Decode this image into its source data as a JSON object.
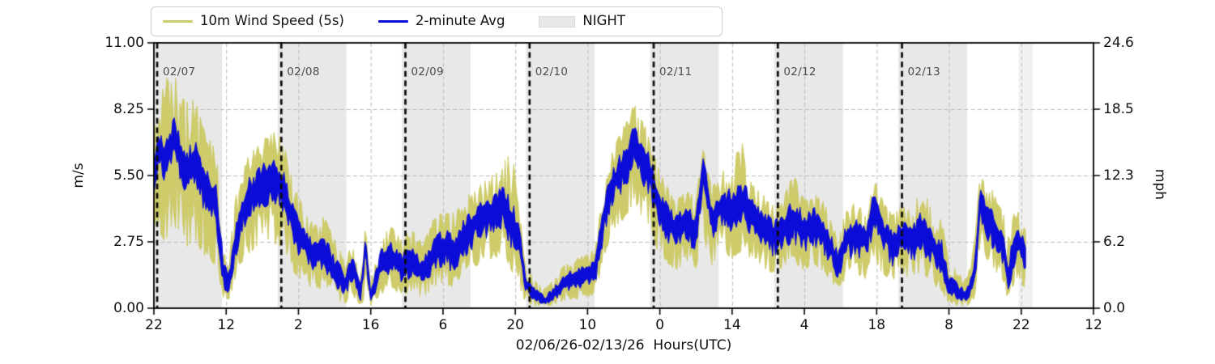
{
  "legend": {
    "items": [
      {
        "label": "10m Wind Speed (5s)",
        "swatch": "line",
        "color": "#cecb6a"
      },
      {
        "label": "2-minute Avg",
        "swatch": "line",
        "color": "#0c0cd8"
      },
      {
        "label": "NIGHT",
        "swatch": "patch",
        "color": "#e8e8e8"
      }
    ]
  },
  "axes": {
    "left": {
      "label": "m/s",
      "ticks": [
        "0.00",
        "2.75",
        "5.50",
        "8.25",
        "11.00"
      ],
      "tick_values": [
        0,
        2.75,
        5.5,
        8.25,
        11.0
      ]
    },
    "right": {
      "label": "mph",
      "ticks": [
        "0.0",
        "6.2",
        "12.3",
        "18.5",
        "24.6"
      ],
      "tick_values": [
        0,
        2.75,
        5.5,
        8.25,
        11.0
      ]
    },
    "x": {
      "label": "02/06/26-02/13/26  Hours(UTC)",
      "ticks": [
        "22",
        "12",
        "2",
        "16",
        "6",
        "20",
        "10",
        "0",
        "14",
        "4",
        "18",
        "8",
        "22",
        "12"
      ],
      "tick_hours": [
        0,
        14,
        28,
        42,
        56,
        70,
        84,
        98,
        112,
        126,
        140,
        154,
        168,
        182
      ]
    }
  },
  "chart_data": {
    "type": "line",
    "xlabel": "02/06/26-02/13/26  Hours(UTC)",
    "ylabel_left": "m/s",
    "ylabel_right": "mph",
    "ylim": [
      0,
      11
    ],
    "y2lim": [
      0,
      24.6
    ],
    "x_hours_lim": [
      0,
      182
    ],
    "grid": true,
    "legend_position": "top",
    "colors": {
      "wind_5s": "#cecb6a",
      "avg_2min": "#0c0cd8",
      "night_band": "#e8e8e8",
      "partial_band": "#f1f1f1",
      "grid_line": "#b9b9b9",
      "day_line": "#0a0a0a",
      "day_label": "#4d4d4d"
    },
    "day_markers": [
      {
        "label": "02/07",
        "t": 0.63
      },
      {
        "label": "02/08",
        "t": 24.68
      },
      {
        "label": "02/09",
        "t": 48.72
      },
      {
        "label": "02/10",
        "t": 72.77
      },
      {
        "label": "02/11",
        "t": 96.81
      },
      {
        "label": "02/12",
        "t": 120.86
      },
      {
        "label": "02/13",
        "t": 144.9
      }
    ],
    "night_bands": [
      [
        0.0,
        13.2
      ],
      [
        23.98,
        37.28
      ],
      [
        48.02,
        61.32
      ],
      [
        72.07,
        85.37
      ],
      [
        96.11,
        109.41
      ],
      [
        120.16,
        133.46
      ],
      [
        144.2,
        157.5
      ]
    ],
    "partial_band": [
      167.5,
      170.2
    ],
    "data_end_hour": 169,
    "noise_seed": 42,
    "series_names": [
      "10m Wind Speed (5s)",
      "2-minute Avg"
    ],
    "points_format": [
      "hours_from_start",
      "avg_2min_ms",
      "wind5s_hi_ms",
      "wind5s_lo_ms"
    ],
    "points": [
      [
        0,
        5.5,
        7.4,
        2.6
      ],
      [
        0.8,
        6.8,
        8.8,
        3.0
      ],
      [
        2,
        6.2,
        10.0,
        2.5
      ],
      [
        4.2,
        7.1,
        9.9,
        3.0
      ],
      [
        6,
        5.6,
        9.3,
        2.2
      ],
      [
        8,
        6.1,
        9.0,
        2.5
      ],
      [
        10,
        4.9,
        7.6,
        1.8
      ],
      [
        12,
        4.4,
        7.2,
        1.5
      ],
      [
        13.5,
        1.4,
        2.9,
        0.3
      ],
      [
        14.5,
        1.0,
        2.1,
        0.2
      ],
      [
        16,
        3.0,
        5.2,
        1.2
      ],
      [
        18,
        4.6,
        6.4,
        2.0
      ],
      [
        20,
        4.9,
        7.0,
        2.2
      ],
      [
        22,
        5.2,
        7.7,
        2.4
      ],
      [
        24,
        5.3,
        7.6,
        2.4
      ],
      [
        25.5,
        4.7,
        6.8,
        2.0
      ],
      [
        27,
        3.6,
        5.4,
        1.3
      ],
      [
        29,
        2.8,
        4.4,
        0.9
      ],
      [
        31,
        2.2,
        3.6,
        0.6
      ],
      [
        33,
        2.5,
        4.0,
        0.7
      ],
      [
        35,
        1.6,
        3.0,
        0.3
      ],
      [
        37,
        1.0,
        2.2,
        0.1
      ],
      [
        38.5,
        1.8,
        3.2,
        0.4
      ],
      [
        40,
        0.5,
        1.8,
        0.05
      ],
      [
        41,
        2.8,
        3.5,
        0.3
      ],
      [
        42,
        0.4,
        1.2,
        0.05
      ],
      [
        44,
        1.9,
        3.2,
        0.4
      ],
      [
        46,
        2.3,
        3.8,
        0.7
      ],
      [
        48,
        1.7,
        3.0,
        0.4
      ],
      [
        50,
        2.1,
        3.6,
        0.6
      ],
      [
        52,
        1.5,
        2.8,
        0.3
      ],
      [
        54,
        2.3,
        3.8,
        0.7
      ],
      [
        56,
        2.7,
        4.2,
        0.9
      ],
      [
        58,
        2.3,
        4.2,
        0.7
      ],
      [
        60,
        3.1,
        4.6,
        1.2
      ],
      [
        62,
        3.5,
        5.2,
        1.5
      ],
      [
        64,
        3.9,
        5.6,
        1.8
      ],
      [
        66,
        4.1,
        5.8,
        1.9
      ],
      [
        67.5,
        4.3,
        6.3,
        2.0
      ],
      [
        69.5,
        3.4,
        6.9,
        1.2
      ],
      [
        70.8,
        2.8,
        4.5,
        0.7
      ],
      [
        72,
        1.0,
        1.8,
        0.1
      ],
      [
        74,
        0.5,
        1.2,
        0.05
      ],
      [
        76,
        0.3,
        0.9,
        0.05
      ],
      [
        78,
        0.7,
        1.5,
        0.1
      ],
      [
        80,
        1.2,
        2.0,
        0.3
      ],
      [
        82,
        1.3,
        2.2,
        0.3
      ],
      [
        84,
        1.5,
        2.4,
        0.4
      ],
      [
        85.5,
        1.6,
        2.6,
        0.4
      ],
      [
        87,
        3.8,
        5.2,
        1.8
      ],
      [
        88.5,
        5.0,
        6.5,
        2.8
      ],
      [
        90,
        5.6,
        7.3,
        3.2
      ],
      [
        92,
        6.3,
        8.2,
        3.8
      ],
      [
        93,
        6.8,
        8.8,
        4.2
      ],
      [
        94.5,
        6.1,
        8.0,
        3.6
      ],
      [
        96,
        5.7,
        7.6,
        3.2
      ],
      [
        97.5,
        4.4,
        6.2,
        2.2
      ],
      [
        99,
        3.9,
        5.4,
        1.8
      ],
      [
        101,
        3.3,
        4.6,
        1.4
      ],
      [
        103,
        3.7,
        5.0,
        1.7
      ],
      [
        105,
        3.4,
        4.8,
        1.5
      ],
      [
        106.5,
        6.1,
        6.8,
        2.6
      ],
      [
        108,
        3.7,
        5.2,
        1.6
      ],
      [
        110,
        4.3,
        5.8,
        2.0
      ],
      [
        112,
        4.1,
        6.4,
        1.9
      ],
      [
        114,
        4.5,
        7.2,
        2.2
      ],
      [
        116,
        3.9,
        5.4,
        1.8
      ],
      [
        118,
        3.5,
        5.0,
        1.5
      ],
      [
        120,
        3.1,
        4.4,
        1.3
      ],
      [
        122,
        3.4,
        4.8,
        1.5
      ],
      [
        124,
        3.7,
        5.9,
        1.7
      ],
      [
        126,
        3.3,
        4.7,
        1.4
      ],
      [
        128,
        3.6,
        5.0,
        1.6
      ],
      [
        130,
        3.1,
        4.5,
        1.3
      ],
      [
        132.5,
        1.9,
        3.0,
        0.6
      ],
      [
        134,
        2.9,
        4.2,
        1.1
      ],
      [
        136,
        3.2,
        4.6,
        1.3
      ],
      [
        138,
        2.8,
        4.0,
        1.0
      ],
      [
        139.5,
        4.4,
        5.9,
        2.0
      ],
      [
        141,
        3.3,
        4.7,
        1.3
      ],
      [
        143,
        2.7,
        4.0,
        0.9
      ],
      [
        145,
        3.1,
        4.4,
        1.2
      ],
      [
        147,
        2.9,
        4.2,
        1.0
      ],
      [
        149,
        3.3,
        5.7,
        1.3
      ],
      [
        151,
        2.6,
        3.8,
        0.8
      ],
      [
        152.5,
        2.2,
        4.0,
        0.6
      ],
      [
        154,
        0.9,
        2.0,
        0.1
      ],
      [
        156,
        0.6,
        1.6,
        0.05
      ],
      [
        157.5,
        0.5,
        1.3,
        0.05
      ],
      [
        159,
        1.5,
        3.0,
        0.3
      ],
      [
        160,
        4.5,
        5.7,
        2.4
      ],
      [
        161.5,
        3.8,
        5.2,
        1.8
      ],
      [
        163,
        3.3,
        5.0,
        1.4
      ],
      [
        164.5,
        2.6,
        4.2,
        0.9
      ],
      [
        165.5,
        1.2,
        3.2,
        0.2
      ],
      [
        167,
        2.9,
        4.5,
        1.1
      ],
      [
        168,
        2.6,
        4.0,
        0.9
      ],
      [
        169,
        2.2,
        3.4,
        0.6
      ]
    ]
  }
}
